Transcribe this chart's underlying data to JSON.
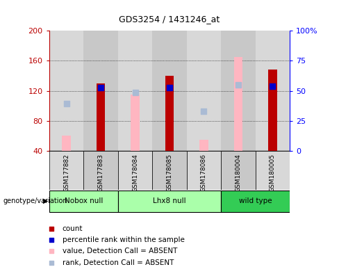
{
  "title": "GDS3254 / 1431246_at",
  "samples": [
    "GSM177882",
    "GSM177883",
    "GSM178084",
    "GSM178085",
    "GSM178086",
    "GSM180004",
    "GSM180005"
  ],
  "count_values": [
    null,
    130,
    null,
    140,
    null,
    null,
    148
  ],
  "count_absent_values": [
    60,
    null,
    115,
    null,
    55,
    165,
    null
  ],
  "percentile_values": [
    null,
    124,
    null,
    124,
    null,
    null,
    126
  ],
  "percentile_absent_values": [
    103,
    null,
    118,
    null,
    93,
    128,
    null
  ],
  "ylim": [
    40,
    200
  ],
  "yticks": [
    40,
    80,
    120,
    160,
    200
  ],
  "y2ticks": [
    0,
    25,
    50,
    75,
    100
  ],
  "bar_width": 0.25,
  "count_color": "#BB0000",
  "count_absent_color": "#FFB6C1",
  "percentile_color": "#0000CC",
  "percentile_absent_color": "#AABBD4",
  "col_bg_even": "#D8D8D8",
  "col_bg_odd": "#C8C8C8",
  "groups": [
    {
      "label": "Nobox null",
      "start": 0,
      "end": 2,
      "color": "#AAFFAA"
    },
    {
      "label": "Lhx8 null",
      "start": 2,
      "end": 5,
      "color": "#AAFFAA"
    },
    {
      "label": "wild type",
      "start": 5,
      "end": 7,
      "color": "#33CC55"
    }
  ],
  "legend_labels": [
    "count",
    "percentile rank within the sample",
    "value, Detection Call = ABSENT",
    "rank, Detection Call = ABSENT"
  ],
  "legend_colors": [
    "#BB0000",
    "#0000CC",
    "#FFB6C1",
    "#AABBD4"
  ]
}
